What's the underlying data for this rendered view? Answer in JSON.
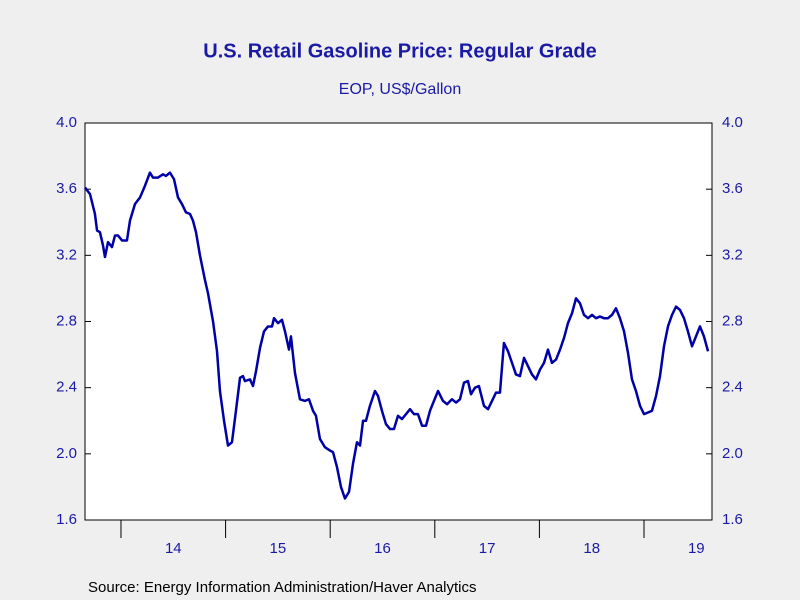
{
  "chart_data": {
    "type": "line",
    "title": "U.S. Retail Gasoline Price: Regular Grade",
    "subtitle": "EOP, US$/Gallon",
    "source": "Source:  Energy Information Administration/Haver Analytics",
    "color": "#0000a8",
    "x": [
      2013.656,
      2013.704,
      2013.751,
      2013.771,
      2013.799,
      2013.828,
      2013.847,
      2013.876,
      2013.914,
      2013.943,
      2013.971,
      2014.01,
      2014.057,
      2014.086,
      2014.134,
      2014.182,
      2014.229,
      2014.277,
      2014.306,
      2014.354,
      2014.402,
      2014.43,
      2014.468,
      2014.507,
      2014.545,
      2014.583,
      2014.621,
      2014.66,
      2014.688,
      2014.717,
      2014.755,
      2014.803,
      2014.832,
      2014.88,
      2014.918,
      2014.946,
      2014.985,
      2015.023,
      2015.061,
      2015.099,
      2015.138,
      2015.166,
      2015.185,
      2015.233,
      2015.262,
      2015.291,
      2015.329,
      2015.367,
      2015.405,
      2015.444,
      2015.463,
      2015.501,
      2015.539,
      2015.568,
      2015.606,
      2015.625,
      2015.663,
      2015.711,
      2015.759,
      2015.797,
      2015.836,
      2015.864,
      2015.902,
      2015.95,
      2015.998,
      2016.027,
      2016.065,
      2016.103,
      2016.141,
      2016.18,
      2016.218,
      2016.256,
      2016.285,
      2016.314,
      2016.342,
      2016.38,
      2016.428,
      2016.457,
      2016.495,
      2016.533,
      2016.572,
      2016.61,
      2016.648,
      2016.686,
      2016.725,
      2016.763,
      2016.801,
      2016.839,
      2016.878,
      2016.916,
      2016.954,
      2016.992,
      2017.031,
      2017.078,
      2017.117,
      2017.164,
      2017.203,
      2017.241,
      2017.279,
      2017.317,
      2017.346,
      2017.384,
      2017.422,
      2017.47,
      2017.509,
      2017.547,
      2017.585,
      2017.623,
      2017.661,
      2017.7,
      2017.738,
      2017.776,
      2017.814,
      2017.853,
      2017.891,
      2017.929,
      2017.967,
      2018.006,
      2018.044,
      2018.082,
      2018.12,
      2018.159,
      2018.197,
      2018.235,
      2018.273,
      2018.312,
      2018.35,
      2018.388,
      2018.426,
      2018.465,
      2018.503,
      2018.541,
      2018.579,
      2018.617,
      2018.656,
      2018.694,
      2018.732,
      2018.77,
      2018.809,
      2018.847,
      2018.885,
      2018.923,
      2018.962,
      2019.0,
      2019.038,
      2019.076,
      2019.115,
      2019.153,
      2019.191,
      2019.229,
      2019.268,
      2019.306,
      2019.344,
      2019.382,
      2019.42,
      2019.459,
      2019.497,
      2019.535,
      2019.573,
      2019.612
    ],
    "values": [
      3.61,
      3.57,
      3.45,
      3.35,
      3.34,
      3.26,
      3.19,
      3.28,
      3.25,
      3.32,
      3.32,
      3.29,
      3.29,
      3.41,
      3.51,
      3.55,
      3.62,
      3.7,
      3.67,
      3.67,
      3.69,
      3.68,
      3.7,
      3.66,
      3.55,
      3.51,
      3.46,
      3.45,
      3.41,
      3.34,
      3.2,
      3.05,
      2.97,
      2.8,
      2.62,
      2.38,
      2.2,
      2.05,
      2.07,
      2.26,
      2.46,
      2.47,
      2.44,
      2.45,
      2.41,
      2.5,
      2.64,
      2.74,
      2.77,
      2.77,
      2.82,
      2.79,
      2.81,
      2.74,
      2.63,
      2.71,
      2.49,
      2.33,
      2.32,
      2.33,
      2.26,
      2.23,
      2.09,
      2.04,
      2.02,
      2.01,
      1.92,
      1.8,
      1.73,
      1.77,
      1.94,
      2.07,
      2.05,
      2.2,
      2.2,
      2.29,
      2.38,
      2.35,
      2.26,
      2.18,
      2.15,
      2.15,
      2.23,
      2.21,
      2.24,
      2.27,
      2.24,
      2.24,
      2.17,
      2.17,
      2.26,
      2.32,
      2.38,
      2.32,
      2.3,
      2.33,
      2.31,
      2.33,
      2.43,
      2.44,
      2.36,
      2.4,
      2.41,
      2.29,
      2.27,
      2.32,
      2.37,
      2.37,
      2.67,
      2.62,
      2.55,
      2.48,
      2.47,
      2.58,
      2.53,
      2.48,
      2.45,
      2.51,
      2.55,
      2.63,
      2.55,
      2.57,
      2.63,
      2.7,
      2.79,
      2.85,
      2.94,
      2.91,
      2.84,
      2.82,
      2.84,
      2.82,
      2.83,
      2.82,
      2.82,
      2.84,
      2.88,
      2.82,
      2.74,
      2.61,
      2.45,
      2.38,
      2.29,
      2.24,
      2.25,
      2.26,
      2.35,
      2.47,
      2.65,
      2.77,
      2.84,
      2.89,
      2.87,
      2.82,
      2.74,
      2.65,
      2.71,
      2.77,
      2.71,
      2.62
    ],
    "xlim": [
      2013.656,
      2019.65
    ],
    "xticks": [
      {
        "value": 2014,
        "label": "14"
      },
      {
        "value": 2015,
        "label": "15"
      },
      {
        "value": 2016,
        "label": "16"
      },
      {
        "value": 2017,
        "label": "17"
      },
      {
        "value": 2018,
        "label": "18"
      },
      {
        "value": 2019,
        "label": "19"
      }
    ],
    "ylim": [
      1.6,
      4.0
    ],
    "yticks": [
      1.6,
      {
        "value": 2.0,
        "label": "2.0"
      },
      2.4,
      2.8,
      3.2,
      3.6,
      {
        "value": 4.0,
        "label": "4.0"
      }
    ],
    "y2lim": [
      1.6,
      4.0
    ],
    "y2ticks": [
      1.6,
      {
        "value": 2.0,
        "label": "2.0"
      },
      2.4,
      2.8,
      3.2,
      3.6,
      {
        "value": 4.0,
        "label": "4.0"
      }
    ],
    "grid": false
  }
}
